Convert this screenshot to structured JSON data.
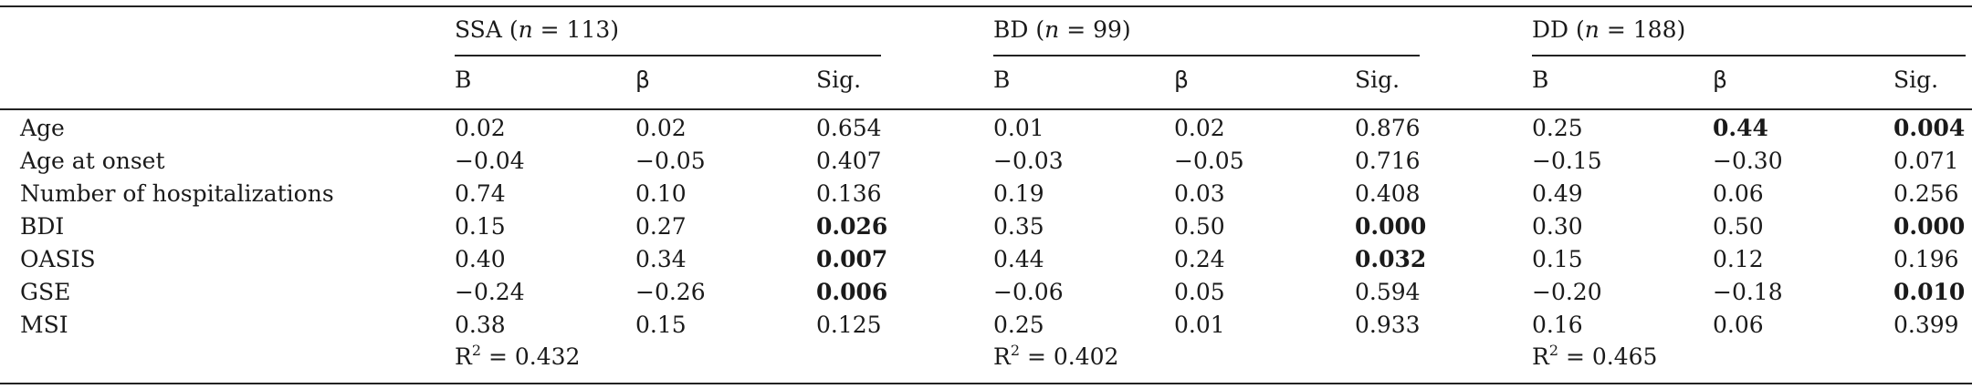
{
  "groups": [
    {
      "name": "SSA",
      "n_label": "n",
      "n_value": "= 113",
      "r2": "R2 = 0.432"
    },
    {
      "name": "BD",
      "n_label": "n",
      "n_value": "= 99",
      "r2": "R2 = 0.402"
    },
    {
      "name": "DD",
      "n_label": "n",
      "n_value": "= 188",
      "r2": "R2 = 0.465"
    }
  ],
  "columns": {
    "b": "B",
    "beta": "β",
    "sig": "Sig."
  },
  "r2": {
    "label": "R",
    "exp": "2",
    "ssa": "= 0.432",
    "bd": "= 0.402",
    "dd": "= 0.465"
  },
  "rows": [
    {
      "label": "Age",
      "ssa": [
        "0.02",
        "0.02",
        "0.654"
      ],
      "bd": [
        "0.01",
        "0.02",
        "0.876"
      ],
      "dd": [
        "0.25",
        "0.44",
        "0.004"
      ]
    },
    {
      "label": "Age at onset",
      "ssa": [
        "−0.04",
        "−0.05",
        "0.407"
      ],
      "bd": [
        "−0.03",
        "−0.05",
        "0.716"
      ],
      "dd": [
        "−0.15",
        "−0.30",
        "0.071"
      ]
    },
    {
      "label": "Number of hospitalizations",
      "ssa": [
        "0.74",
        "0.10",
        "0.136"
      ],
      "bd": [
        "0.19",
        "0.03",
        "0.408"
      ],
      "dd": [
        "0.49",
        "0.06",
        "0.256"
      ]
    },
    {
      "label": "BDI",
      "ssa": [
        "0.15",
        "0.27",
        "0.026"
      ],
      "bd": [
        "0.35",
        "0.50",
        "0.000"
      ],
      "dd": [
        "0.30",
        "0.50",
        "0.000"
      ]
    },
    {
      "label": "OASIS",
      "ssa": [
        "0.40",
        "0.34",
        "0.007"
      ],
      "bd": [
        "0.44",
        "0.24",
        "0.032"
      ],
      "dd": [
        "0.15",
        "0.12",
        "0.196"
      ]
    },
    {
      "label": "GSE",
      "ssa": [
        "−0.24",
        "−0.26",
        "0.006"
      ],
      "bd": [
        "−0.06",
        "0.05",
        "0.594"
      ],
      "dd": [
        "−0.20",
        "−0.18",
        "0.010"
      ]
    },
    {
      "label": "MSI",
      "ssa": [
        "0.38",
        "0.15",
        "0.125"
      ],
      "bd": [
        "0.25",
        "0.01",
        "0.933"
      ],
      "dd": [
        "0.16",
        "0.06",
        "0.399"
      ]
    }
  ],
  "bold_cells": [
    "0.dd.1",
    "0.dd.2",
    "3.ssa.2",
    "3.bd.2",
    "3.dd.2",
    "4.ssa.2",
    "4.bd.2",
    "5.ssa.2",
    "5.dd.2"
  ]
}
